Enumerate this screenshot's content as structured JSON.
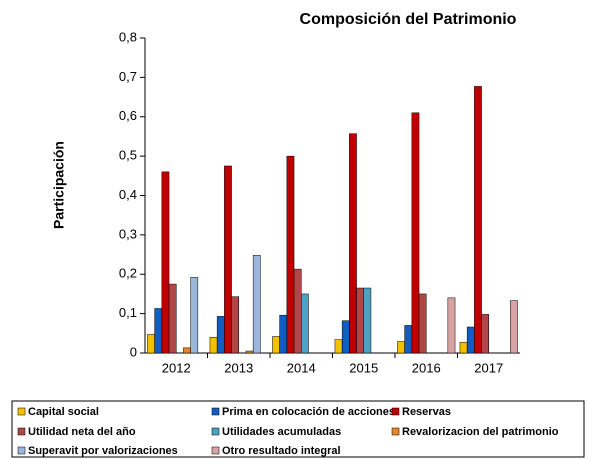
{
  "chart_data": {
    "type": "bar",
    "title": "Composición del Patrimonio",
    "y_label": "Participación",
    "categories": [
      "2012",
      "2013",
      "2014",
      "2015",
      "2016",
      "2017"
    ],
    "ylim": [
      0,
      0.8
    ],
    "yticks": [
      0,
      {
        "value": 0.1,
        "label": "0,1"
      },
      {
        "value": 0.2,
        "label": "0,2"
      },
      {
        "value": 0.3,
        "label": "0,3"
      },
      {
        "value": 0.4,
        "label": "0,4"
      },
      {
        "value": 0.5,
        "label": "0,5"
      },
      {
        "value": 0.6,
        "label": "0,6"
      },
      {
        "value": 0.7,
        "label": "0,7"
      },
      {
        "value": 0.8,
        "label": "0,8"
      }
    ],
    "series": [
      {
        "name": "Capital social",
        "color": "#f5c000",
        "values": [
          0.047,
          0.04,
          0.042,
          0.034,
          0.029,
          0.027
        ]
      },
      {
        "name": "Prima en colocación de acciones",
        "color": "#0f5fc2",
        "values": [
          0.113,
          0.093,
          0.096,
          0.082,
          0.07,
          0.066
        ]
      },
      {
        "name": "Reservas",
        "color": "#c00000",
        "values": [
          0.46,
          0.475,
          0.5,
          0.557,
          0.61,
          0.677
        ]
      },
      {
        "name": "Utilidad neta del año",
        "color": "#b24545",
        "values": [
          0.175,
          0.143,
          0.213,
          0.165,
          0.15,
          0.098
        ]
      },
      {
        "name": "Utilidades acumuladas",
        "color": "#4aa3c0",
        "values": [
          0,
          0,
          0.15,
          0.165,
          0,
          0
        ]
      },
      {
        "name": "Revalorizacion del patrimonio",
        "color": "#e8842f",
        "values": [
          0.013,
          0.005,
          0,
          0,
          0,
          0
        ]
      },
      {
        "name": "Superavit por valorizaciones",
        "color": "#9ab6da",
        "values": [
          0.192,
          0.248,
          0,
          0,
          0,
          0
        ]
      },
      {
        "name": "Otro resultado integral",
        "color": "#d9a3a3",
        "values": [
          0,
          0,
          0,
          0,
          0.14,
          0.133
        ]
      }
    ]
  }
}
